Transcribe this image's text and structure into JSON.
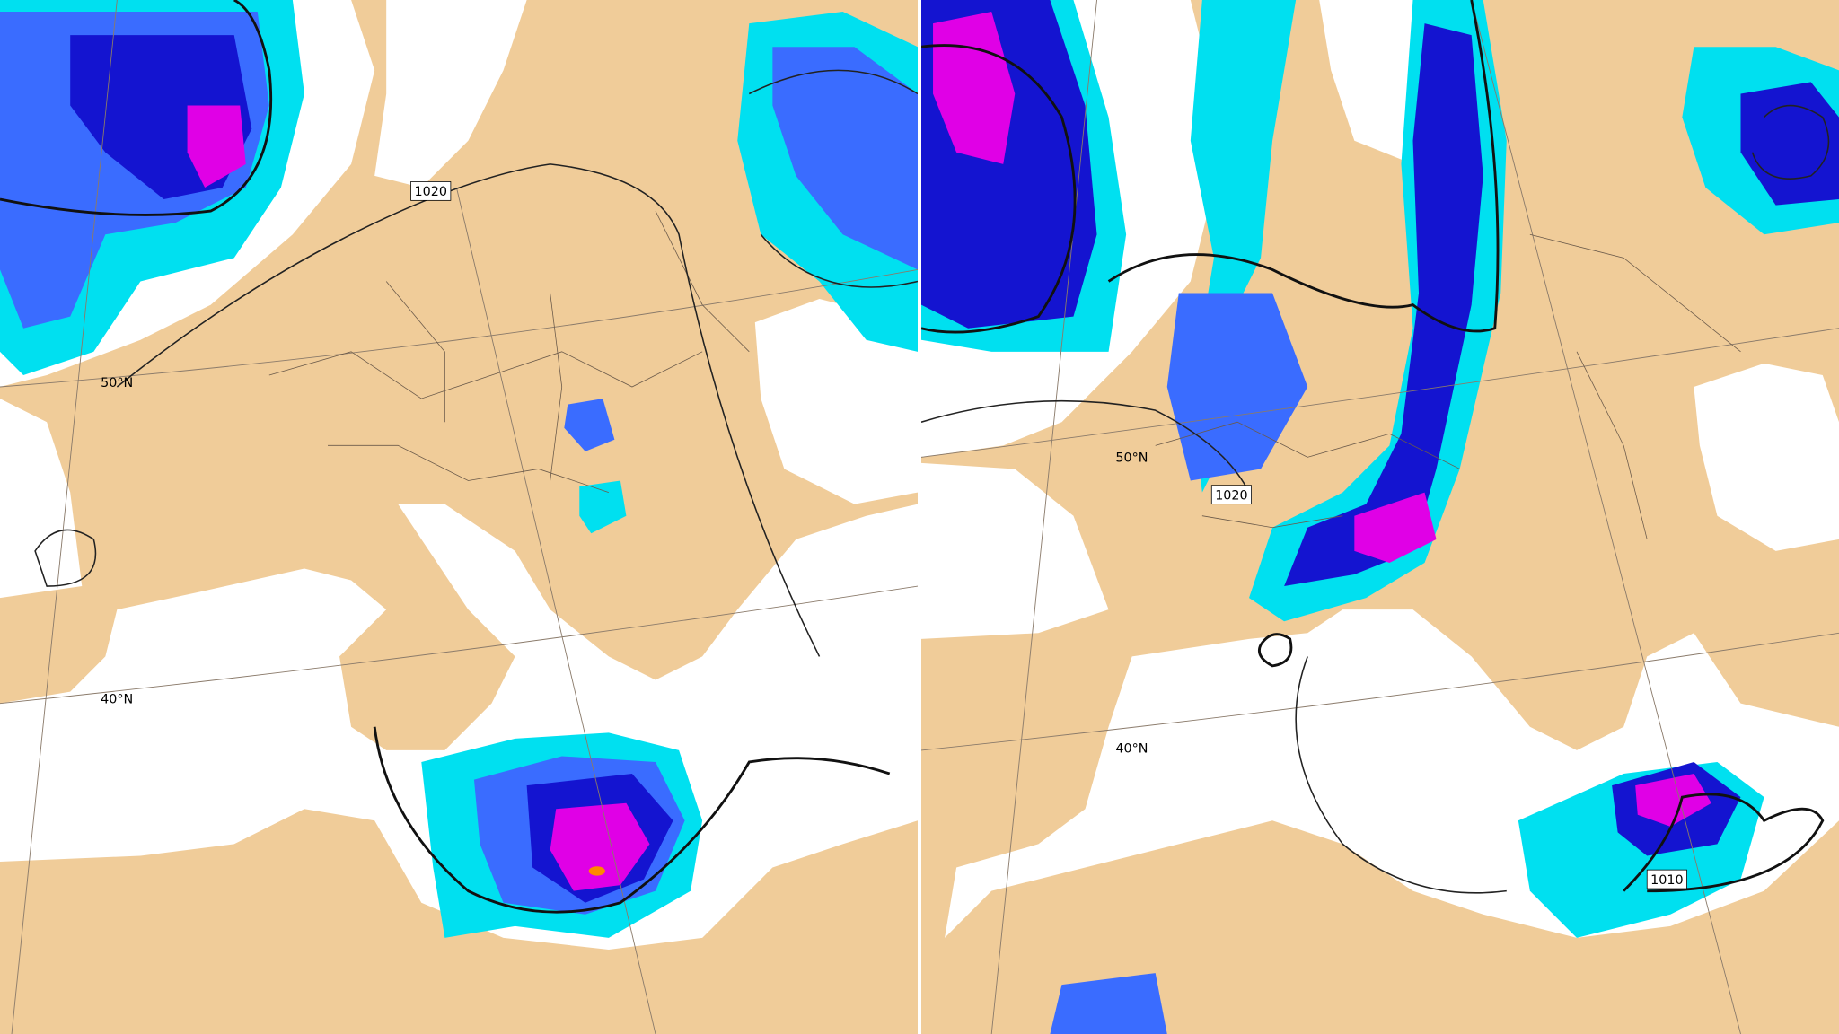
{
  "panels": [
    {
      "isobar_labels": [
        "1020"
      ],
      "latitude_labels": [
        "50°N",
        "40°N"
      ]
    },
    {
      "isobar_labels": [
        "1020",
        "1010"
      ],
      "latitude_labels": [
        "50°N",
        "40°N"
      ]
    }
  ]
}
